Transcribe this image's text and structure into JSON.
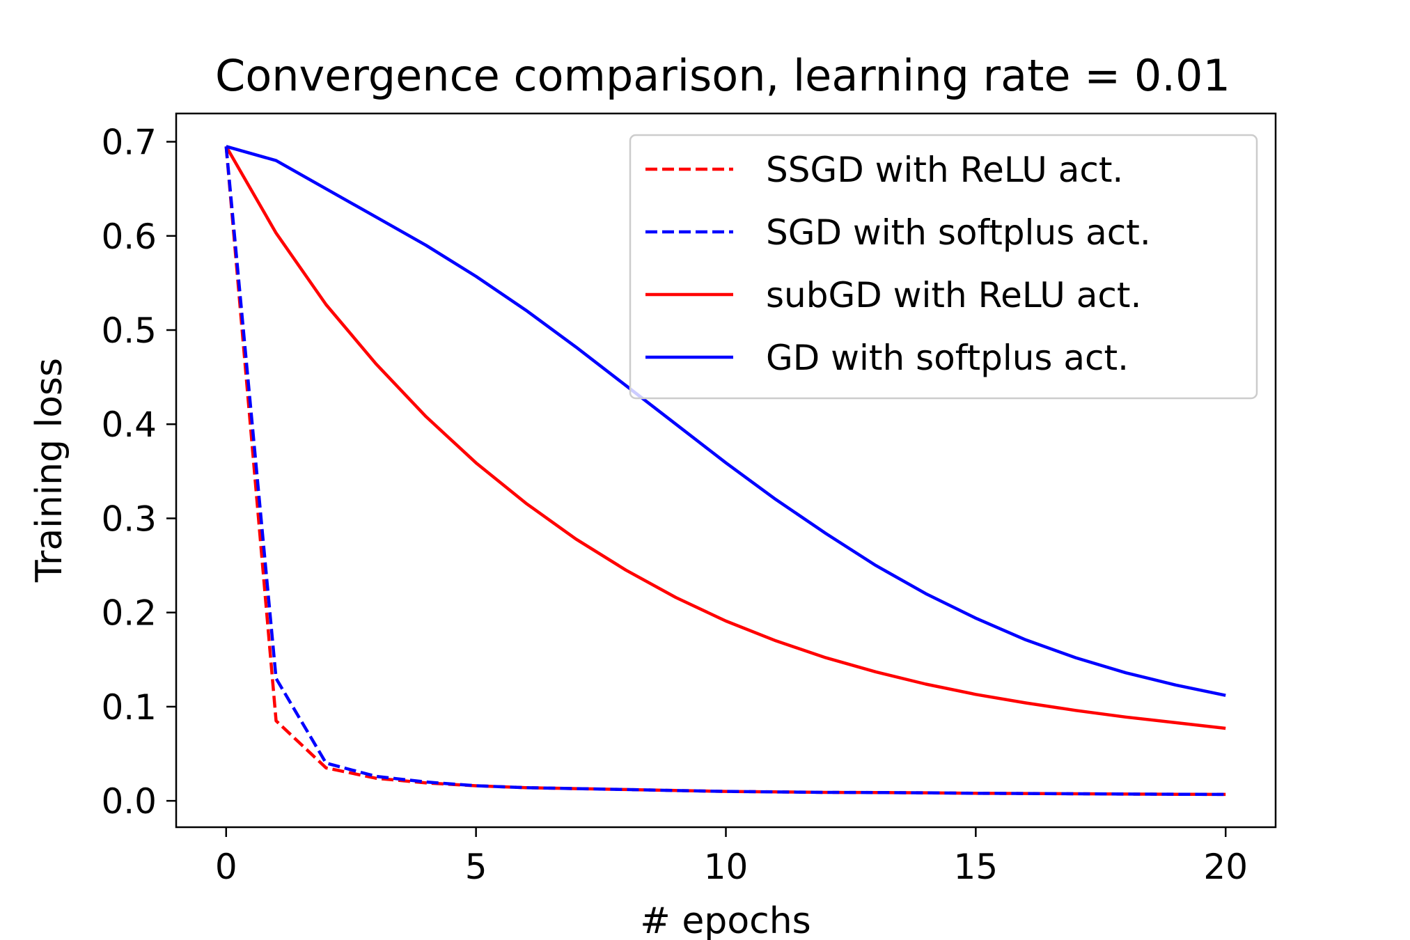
{
  "chart_data": {
    "type": "line",
    "title": "Convergence comparison, learning rate = 0.01",
    "xlabel": "# epochs",
    "ylabel": "Training loss",
    "xlim": [
      -1,
      21
    ],
    "ylim": [
      -0.028,
      0.73
    ],
    "x_ticks": [
      0,
      5,
      10,
      15,
      20
    ],
    "x_tick_labels": [
      "0",
      "5",
      "10",
      "15",
      "20"
    ],
    "y_ticks": [
      0.0,
      0.1,
      0.2,
      0.3,
      0.4,
      0.5,
      0.6,
      0.7
    ],
    "y_tick_labels": [
      "0.0",
      "0.1",
      "0.2",
      "0.3",
      "0.4",
      "0.5",
      "0.6",
      "0.7"
    ],
    "grid": false,
    "legend_position": "upper-right",
    "x": [
      0,
      1,
      2,
      3,
      4,
      5,
      6,
      7,
      8,
      9,
      10,
      11,
      12,
      13,
      14,
      15,
      16,
      17,
      18,
      19,
      20
    ],
    "series": [
      {
        "name": "SSGD with ReLU act.",
        "color": "#ff0000",
        "line_style": "dashed",
        "values": [
          0.695,
          0.085,
          0.035,
          0.024,
          0.019,
          0.016,
          0.014,
          0.013,
          0.012,
          0.011,
          0.01,
          0.0095,
          0.009,
          0.0088,
          0.0085,
          0.008,
          0.0078,
          0.0075,
          0.0072,
          0.007,
          0.0068
        ]
      },
      {
        "name": "SGD with softplus act.",
        "color": "#0000ff",
        "line_style": "dashed",
        "values": [
          0.695,
          0.13,
          0.04,
          0.026,
          0.02,
          0.016,
          0.014,
          0.013,
          0.012,
          0.011,
          0.01,
          0.0095,
          0.009,
          0.0088,
          0.0085,
          0.008,
          0.0078,
          0.0075,
          0.0072,
          0.007,
          0.0068
        ]
      },
      {
        "name": "subGD with ReLU act.",
        "color": "#ff0000",
        "line_style": "solid",
        "values": [
          0.695,
          0.603,
          0.527,
          0.464,
          0.408,
          0.359,
          0.316,
          0.278,
          0.245,
          0.216,
          0.191,
          0.17,
          0.152,
          0.137,
          0.124,
          0.113,
          0.104,
          0.096,
          0.089,
          0.083,
          0.077
        ]
      },
      {
        "name": "GD with softplus act.",
        "color": "#0000ff",
        "line_style": "solid",
        "values": [
          0.695,
          0.68,
          0.65,
          0.62,
          0.59,
          0.557,
          0.521,
          0.482,
          0.441,
          0.4,
          0.359,
          0.32,
          0.284,
          0.25,
          0.22,
          0.194,
          0.171,
          0.152,
          0.136,
          0.123,
          0.112
        ]
      }
    ]
  }
}
